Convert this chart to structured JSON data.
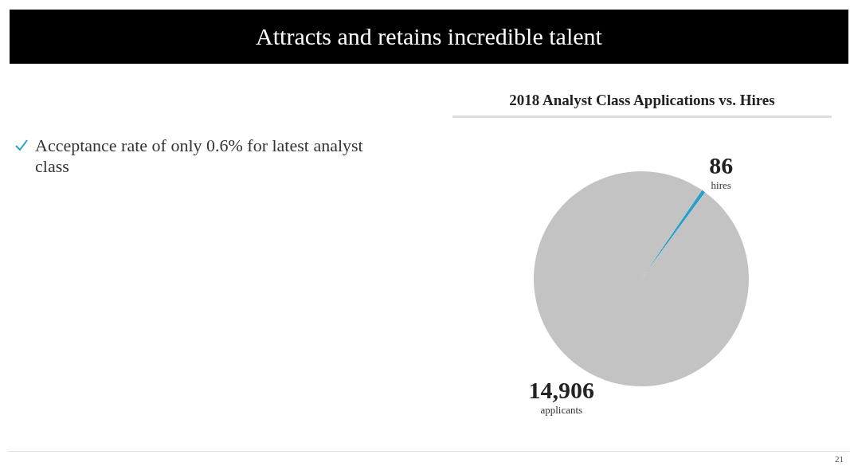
{
  "chart_data": {
    "type": "pie",
    "title": "Attracts and retains incredible talent",
    "subtitle": "2018 Analyst Class Applications vs. Hires",
    "categories": [
      "hires",
      "applicants"
    ],
    "values": [
      86,
      14906
    ],
    "colors": [
      "#2a9fc9",
      "#c3c3c3"
    ],
    "value_labels": [
      "86",
      "14,906"
    ],
    "annotations": [
      "Acceptance rate of only 0.6% for latest analyst class",
      "21"
    ]
  }
}
